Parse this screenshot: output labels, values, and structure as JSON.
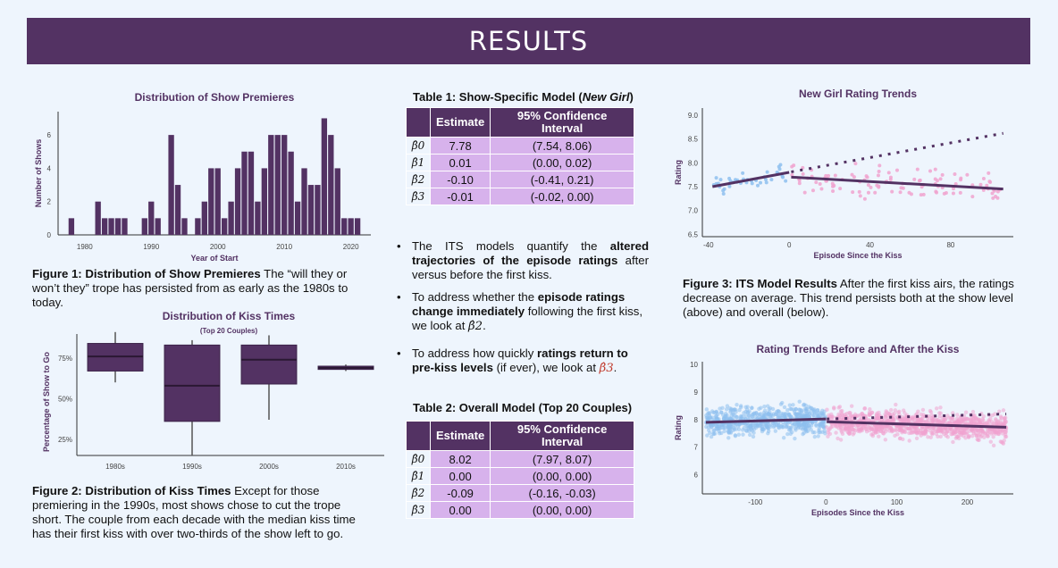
{
  "banner": {
    "title": "RESULTS"
  },
  "fig1_caption": {
    "label": "Figure 1: Distribution of Show Premieres",
    "text": " The “will they or won’t they” trope has persisted from as early as the 1980s to today."
  },
  "fig2_caption": {
    "label": "Figure 2: Distribution of Kiss Times",
    "text": " Except for those premiering in the 1990s, most shows chose to cut the trope short. The couple from each decade with the median kiss time has their first kiss with over two-thirds of the show left to go."
  },
  "fig3_caption": {
    "label": "Figure 3: ITS Model Results",
    "text": " After the first kiss airs, the ratings decrease on average. This trend persists both at the show level (above) and overall (below)."
  },
  "table1": {
    "title_prefix": "Table 1: Show-Specific Model (",
    "title_italic": "New Girl",
    "title_suffix": ")",
    "headers": [
      "Estimate",
      "95% Confidence Interval"
    ],
    "rows": [
      {
        "sym": "β̂0",
        "estimate": "7.78",
        "ci": "(7.54, 8.06)"
      },
      {
        "sym": "β̂1",
        "estimate": "0.01",
        "ci": "(0.00, 0.02)"
      },
      {
        "sym": "β̂2",
        "estimate": "-0.10",
        "ci": "(-0.41, 0.21)"
      },
      {
        "sym": "β̂3",
        "estimate": "-0.01",
        "ci": "(-0.02, 0.00)"
      }
    ]
  },
  "table2": {
    "title": "Table 2: Overall Model (Top 20 Couples)",
    "headers": [
      "Estimate",
      "95% Confidence Interval"
    ],
    "rows": [
      {
        "sym": "β̂0",
        "estimate": "8.02",
        "ci": "(7.97,  8.07)"
      },
      {
        "sym": "β̂1",
        "estimate": "0.00",
        "ci": "(0.00, 0.00)"
      },
      {
        "sym": "β̂2",
        "estimate": "-0.09",
        "ci": "(-0.16, -0.03)"
      },
      {
        "sym": "β̂3",
        "estimate": "0.00",
        "ci": "(0.00, 0.00)"
      }
    ]
  },
  "bullets": {
    "b1_pre": "The ITS models quantify the ",
    "b1_bold": "altered trajectories of the episode ratings",
    "b1_post": " after versus before the first kiss.",
    "b2_pre": "To address whether the ",
    "b2_bold": "episode ratings change immediately",
    "b2_mid": " following the first kiss, we look at ",
    "b2_sym": "β̂2",
    "b2_post": ".",
    "b3_pre": "To address how quickly ",
    "b3_bold": "ratings return to pre-kiss levels",
    "b3_mid": " (if ever), we look at ",
    "b3_sym": "β̂3",
    "b3_post": "."
  },
  "colors": {
    "purple": "#533263",
    "light_purple": "#d7b2ec",
    "blue": "#8ec0ee",
    "pink": "#f0a3cf",
    "background": "#eef5fd"
  },
  "chart_data": [
    {
      "type": "bar",
      "title": "Distribution of Show Premieres",
      "xlabel": "Year of Start",
      "ylabel": "Number of Shows",
      "xlim": [
        1976,
        2023
      ],
      "ylim": [
        0,
        7.4
      ],
      "xticks": [
        "1980",
        "1990",
        "2000",
        "2010",
        "2020"
      ],
      "yticks": [
        "0",
        "2",
        "4",
        "6"
      ],
      "x": [
        1978,
        1982,
        1983,
        1984,
        1985,
        1986,
        1989,
        1990,
        1991,
        1993,
        1994,
        1995,
        1997,
        1998,
        1999,
        2000,
        2001,
        2002,
        2003,
        2004,
        2005,
        2006,
        2007,
        2008,
        2009,
        2010,
        2011,
        2012,
        2013,
        2014,
        2015,
        2016,
        2017,
        2018,
        2019,
        2020,
        2021
      ],
      "values": [
        1,
        2,
        1,
        1,
        1,
        1,
        1,
        2,
        1,
        6,
        3,
        1,
        1,
        2,
        4,
        4,
        1,
        2,
        4,
        5,
        5,
        2,
        4,
        6,
        6,
        6,
        5,
        2,
        4,
        3,
        3,
        7,
        6,
        4,
        1,
        1,
        1
      ]
    },
    {
      "type": "box",
      "title": "Distribution of Kiss Times",
      "subtitle": "(Top 20 Couples)",
      "ylabel": "Percentage of Show to Go",
      "categories": [
        "1980s",
        "1990s",
        "2000s",
        "2010s"
      ],
      "yticks": [
        "25%",
        "50%",
        "75%"
      ],
      "ylim": [
        0.15,
        0.92
      ],
      "boxes": [
        {
          "min": 0.6,
          "q1": 0.67,
          "median": 0.76,
          "q3": 0.84,
          "max": 0.91
        },
        {
          "min": 0.15,
          "q1": 0.36,
          "median": 0.58,
          "q3": 0.83,
          "max": 0.86
        },
        {
          "min": 0.37,
          "q1": 0.59,
          "median": 0.74,
          "q3": 0.83,
          "max": 0.89
        },
        {
          "min": 0.67,
          "q1": 0.68,
          "median": 0.69,
          "q3": 0.7,
          "max": 0.71
        }
      ]
    },
    {
      "type": "scatter",
      "title": "New Girl Rating Trends",
      "xlabel": "Episode Since the Kiss",
      "ylabel": "Rating",
      "xlim": [
        -43,
        111
      ],
      "ylim": [
        6.45,
        9.15
      ],
      "xticks": [
        "-40",
        "0",
        "40",
        "80"
      ],
      "yticks": [
        "6.5",
        "7.0",
        "7.5",
        "8.0",
        "8.5",
        "9.0"
      ],
      "pre_line": {
        "x": [
          -38,
          0
        ],
        "y": [
          7.5,
          7.8
        ]
      },
      "post_line": {
        "x": [
          1,
          106
        ],
        "y": [
          7.7,
          7.45
        ]
      },
      "counterfactual_line": {
        "x": [
          1,
          106
        ],
        "y": [
          7.81,
          8.62
        ]
      }
    },
    {
      "type": "scatter",
      "title": "Rating Trends Before and After the Kiss",
      "xlabel": "Episodes Since the Kiss",
      "ylabel": "Rating",
      "xlim": [
        -175,
        265
      ],
      "ylim": [
        5.3,
        10.1
      ],
      "xticks": [
        "-100",
        "0",
        "100",
        "200"
      ],
      "yticks": [
        "6",
        "7",
        "8",
        "9",
        "10"
      ],
      "pre_line": {
        "x": [
          -170,
          0
        ],
        "y": [
          7.9,
          8.02
        ]
      },
      "post_line": {
        "x": [
          1,
          255
        ],
        "y": [
          7.92,
          7.72
        ]
      },
      "counterfactual_line": {
        "x": [
          1,
          255
        ],
        "y": [
          8.02,
          8.2
        ]
      }
    }
  ]
}
